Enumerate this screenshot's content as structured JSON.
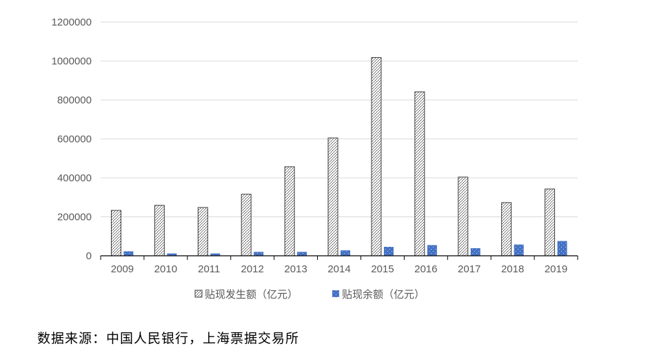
{
  "chart_data": {
    "type": "bar",
    "categories": [
      "2009",
      "2010",
      "2011",
      "2012",
      "2013",
      "2014",
      "2015",
      "2016",
      "2017",
      "2018",
      "2019"
    ],
    "series": [
      {
        "name": "贴现发生额（亿元）",
        "values": [
          233000,
          259000,
          248000,
          316000,
          457000,
          605000,
          1018000,
          842000,
          404000,
          273000,
          343000
        ],
        "fill": "pattern",
        "color": "#404040"
      },
      {
        "name": "贴现余额（亿元）",
        "values": [
          23000,
          12000,
          12000,
          20000,
          20000,
          28000,
          46000,
          55000,
          39000,
          58000,
          76000
        ],
        "fill": "dotted",
        "color": "#4472C4"
      }
    ],
    "y_ticks": [
      "0",
      "200000",
      "400000",
      "600000",
      "800000",
      "1000000",
      "1200000"
    ],
    "ylim": [
      0,
      1200000
    ],
    "grid": true,
    "legend_position": "bottom"
  },
  "source_note": "数据来源：中国人民银行，上海票据交易所"
}
